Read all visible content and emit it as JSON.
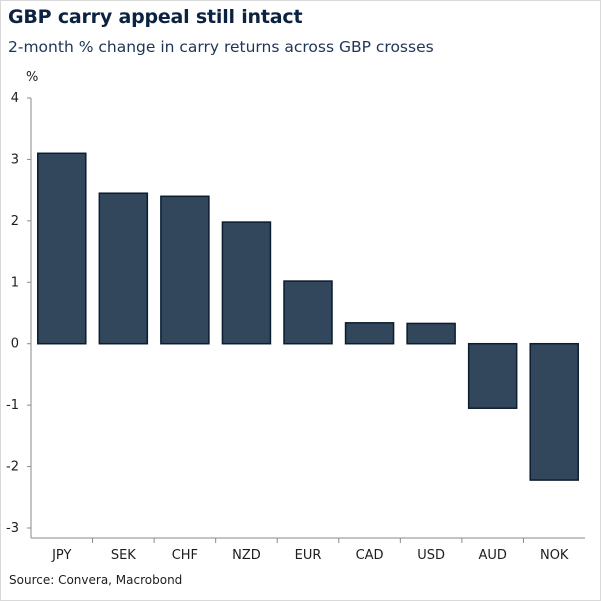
{
  "title": "GBP carry appeal still intact",
  "subtitle": "2-month % change in carry returns across GBP crosses",
  "unit_label": "%",
  "source": "Source: Convera, Macrobond",
  "colors": {
    "bar_fill": "#33475c",
    "bar_stroke": "#0b1d30",
    "axis": "#8a8a8a",
    "title": "#0b2340"
  },
  "chart_data": {
    "type": "bar",
    "title": "GBP carry appeal still intact",
    "subtitle": "2-month % change in carry returns across GBP crosses",
    "ylabel": "%",
    "xlabel": "",
    "categories": [
      "JPY",
      "SEK",
      "CHF",
      "NZD",
      "EUR",
      "CAD",
      "USD",
      "AUD",
      "NOK"
    ],
    "values": [
      3.1,
      2.45,
      2.4,
      1.98,
      1.02,
      0.34,
      0.33,
      -1.05,
      -2.22
    ],
    "ylim": [
      -3,
      4
    ],
    "yticks": [
      "4",
      "3",
      "2",
      "1",
      "0",
      "-1",
      "-2",
      "-3"
    ],
    "grid": false,
    "legend": "none"
  }
}
